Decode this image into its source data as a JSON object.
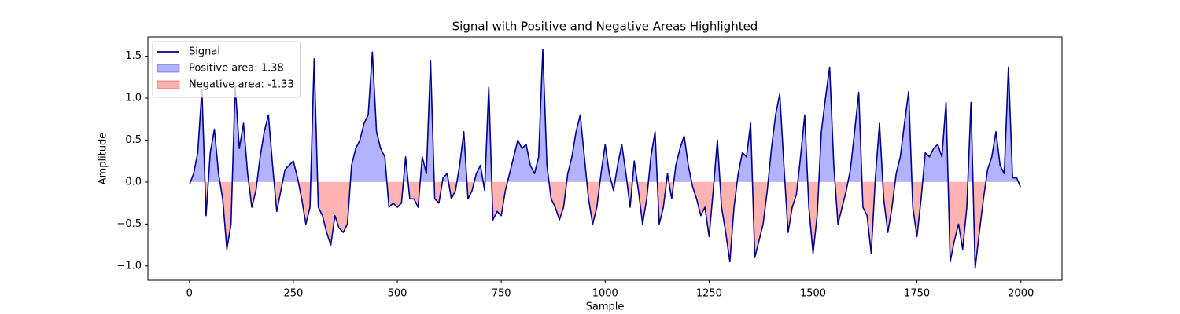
{
  "chart_data": {
    "type": "line",
    "title": "Signal with Positive and Negative Areas Highlighted",
    "xlabel": "Sample",
    "ylabel": "Amplitude",
    "x": [
      0,
      10,
      20,
      30,
      40,
      50,
      60,
      70,
      80,
      90,
      100,
      110,
      120,
      130,
      140,
      150,
      160,
      170,
      180,
      190,
      200,
      210,
      220,
      230,
      240,
      250,
      260,
      270,
      280,
      290,
      300,
      310,
      320,
      330,
      340,
      350,
      360,
      370,
      380,
      390,
      400,
      410,
      420,
      430,
      440,
      450,
      460,
      470,
      480,
      490,
      500,
      510,
      520,
      530,
      540,
      550,
      560,
      570,
      580,
      590,
      600,
      610,
      620,
      630,
      640,
      650,
      660,
      670,
      680,
      690,
      700,
      710,
      720,
      730,
      740,
      750,
      760,
      770,
      780,
      790,
      800,
      810,
      820,
      830,
      840,
      850,
      860,
      870,
      880,
      890,
      900,
      910,
      920,
      930,
      940,
      950,
      960,
      970,
      980,
      990,
      1000,
      1010,
      1020,
      1030,
      1040,
      1050,
      1060,
      1070,
      1080,
      1090,
      1100,
      1110,
      1120,
      1130,
      1140,
      1150,
      1160,
      1170,
      1180,
      1190,
      1200,
      1210,
      1220,
      1230,
      1240,
      1250,
      1260,
      1270,
      1280,
      1290,
      1300,
      1310,
      1320,
      1330,
      1340,
      1350,
      1360,
      1370,
      1380,
      1390,
      1400,
      1410,
      1420,
      1430,
      1440,
      1450,
      1460,
      1470,
      1480,
      1490,
      1500,
      1510,
      1520,
      1530,
      1540,
      1550,
      1560,
      1570,
      1580,
      1590,
      1600,
      1610,
      1620,
      1630,
      1640,
      1650,
      1660,
      1670,
      1680,
      1690,
      1700,
      1710,
      1720,
      1730,
      1740,
      1750,
      1760,
      1770,
      1780,
      1790,
      1800,
      1810,
      1820,
      1830,
      1840,
      1850,
      1860,
      1870,
      1880,
      1890,
      1900,
      1910,
      1920,
      1930,
      1940,
      1950,
      1960,
      1970,
      1980,
      1990,
      1999
    ],
    "series": [
      {
        "name": "Signal",
        "color": "#00008b",
        "values": [
          -0.03,
          0.1,
          0.35,
          1.1,
          -0.4,
          0.35,
          0.63,
          0.1,
          -0.2,
          -0.8,
          -0.5,
          1.15,
          0.4,
          0.7,
          0.1,
          -0.3,
          -0.1,
          0.3,
          0.6,
          0.8,
          0.2,
          -0.35,
          -0.1,
          0.15,
          0.2,
          0.25,
          0.05,
          -0.2,
          -0.5,
          -0.3,
          1.47,
          -0.3,
          -0.4,
          -0.6,
          -0.75,
          -0.4,
          -0.55,
          -0.6,
          -0.5,
          0.2,
          0.4,
          0.5,
          0.7,
          0.8,
          1.55,
          0.6,
          0.4,
          0.3,
          -0.3,
          -0.25,
          -0.3,
          -0.25,
          0.3,
          -0.2,
          -0.2,
          -0.3,
          0.3,
          0.1,
          1.45,
          -0.2,
          -0.25,
          0.05,
          0.1,
          -0.2,
          -0.1,
          0.2,
          0.6,
          -0.2,
          -0.1,
          0.1,
          0.2,
          -0.1,
          1.13,
          -0.45,
          -0.35,
          -0.4,
          -0.1,
          0.1,
          0.3,
          0.5,
          0.4,
          0.45,
          0.2,
          0.1,
          0.3,
          1.58,
          0.2,
          -0.2,
          -0.3,
          -0.45,
          -0.3,
          0.1,
          0.3,
          0.6,
          0.8,
          0.3,
          -0.2,
          -0.5,
          -0.3,
          0.1,
          0.45,
          0.1,
          -0.1,
          0.2,
          0.45,
          0.1,
          -0.3,
          0.25,
          -0.1,
          -0.5,
          -0.2,
          0.3,
          0.6,
          -0.5,
          -0.3,
          0.1,
          -0.2,
          0.2,
          0.4,
          0.55,
          0.2,
          -0.05,
          -0.2,
          -0.4,
          -0.3,
          -0.65,
          -0.1,
          0.5,
          -0.3,
          -0.6,
          -0.95,
          -0.3,
          0.1,
          0.35,
          0.3,
          0.7,
          -0.9,
          -0.7,
          -0.5,
          -0.1,
          0.4,
          0.8,
          1.05,
          0.2,
          -0.6,
          -0.3,
          -0.15,
          0.3,
          0.8,
          -0.3,
          -0.85,
          -0.4,
          0.6,
          1.0,
          1.37,
          0.2,
          -0.5,
          -0.3,
          -0.1,
          0.15,
          0.6,
          1.07,
          -0.3,
          -0.4,
          -0.85,
          0.05,
          0.7,
          -0.2,
          -0.6,
          -0.3,
          0.1,
          0.3,
          0.7,
          1.08,
          -0.3,
          -0.65,
          -0.2,
          0.35,
          0.3,
          0.4,
          0.45,
          0.3,
          0.95,
          -0.95,
          -0.7,
          -0.5,
          -0.8,
          -0.3,
          0.95,
          -1.03,
          -0.6,
          -0.2,
          0.15,
          0.3,
          0.6,
          0.2,
          0.1,
          1.37,
          0.05,
          0.05,
          -0.06
        ]
      }
    ],
    "fills": [
      {
        "name": "Positive area: 1.38",
        "color": "#0000ff",
        "alpha": 0.3,
        "where": "above"
      },
      {
        "name": "Negative area: -1.33",
        "color": "#ff0000",
        "alpha": 0.3,
        "where": "below"
      }
    ],
    "xlim": [
      -99.95,
      2098.95
    ],
    "ylim": [
      -1.17,
      1.73
    ],
    "xticks": [
      0,
      250,
      500,
      750,
      1000,
      1250,
      1500,
      1750,
      2000
    ],
    "yticks": [
      {
        "value": -1,
        "label": "−1.0"
      },
      {
        "value": -0.5,
        "label": "−0.5"
      },
      {
        "value": 0,
        "label": "0.0"
      },
      {
        "value": 0.5,
        "label": "0.5"
      },
      {
        "value": 1,
        "label": "1.0"
      },
      {
        "value": 1.5,
        "label": "1.5"
      }
    ],
    "legend": "upper left"
  }
}
